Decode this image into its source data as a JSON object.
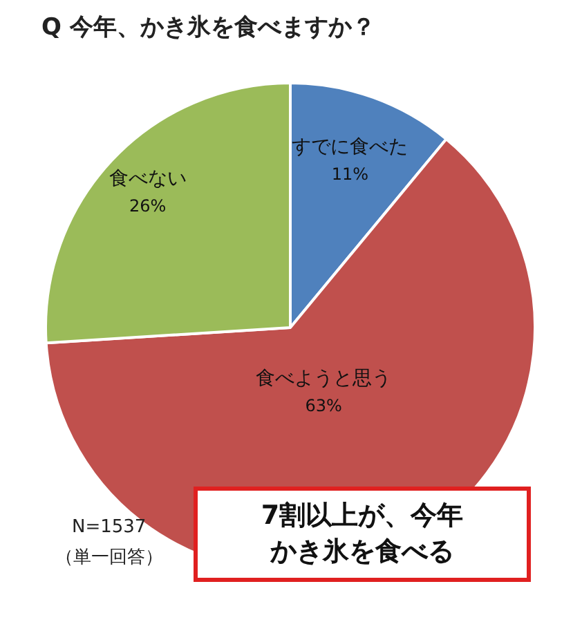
{
  "chart_data": {
    "type": "pie",
    "title": "Q 今年、かき氷を食べますか？",
    "categories": [
      "すでに食べた",
      "食べようと思う",
      "食べない"
    ],
    "values": [
      11,
      63,
      26
    ],
    "value_labels": [
      "11%",
      "63%",
      "26%"
    ],
    "colors": [
      "#4f81bd",
      "#c0504d",
      "#9bbb59"
    ],
    "legend": false,
    "annotations": [
      "N=1537",
      "（単一回答）",
      "7割以上が、今年かき氷を食べる"
    ]
  }
}
